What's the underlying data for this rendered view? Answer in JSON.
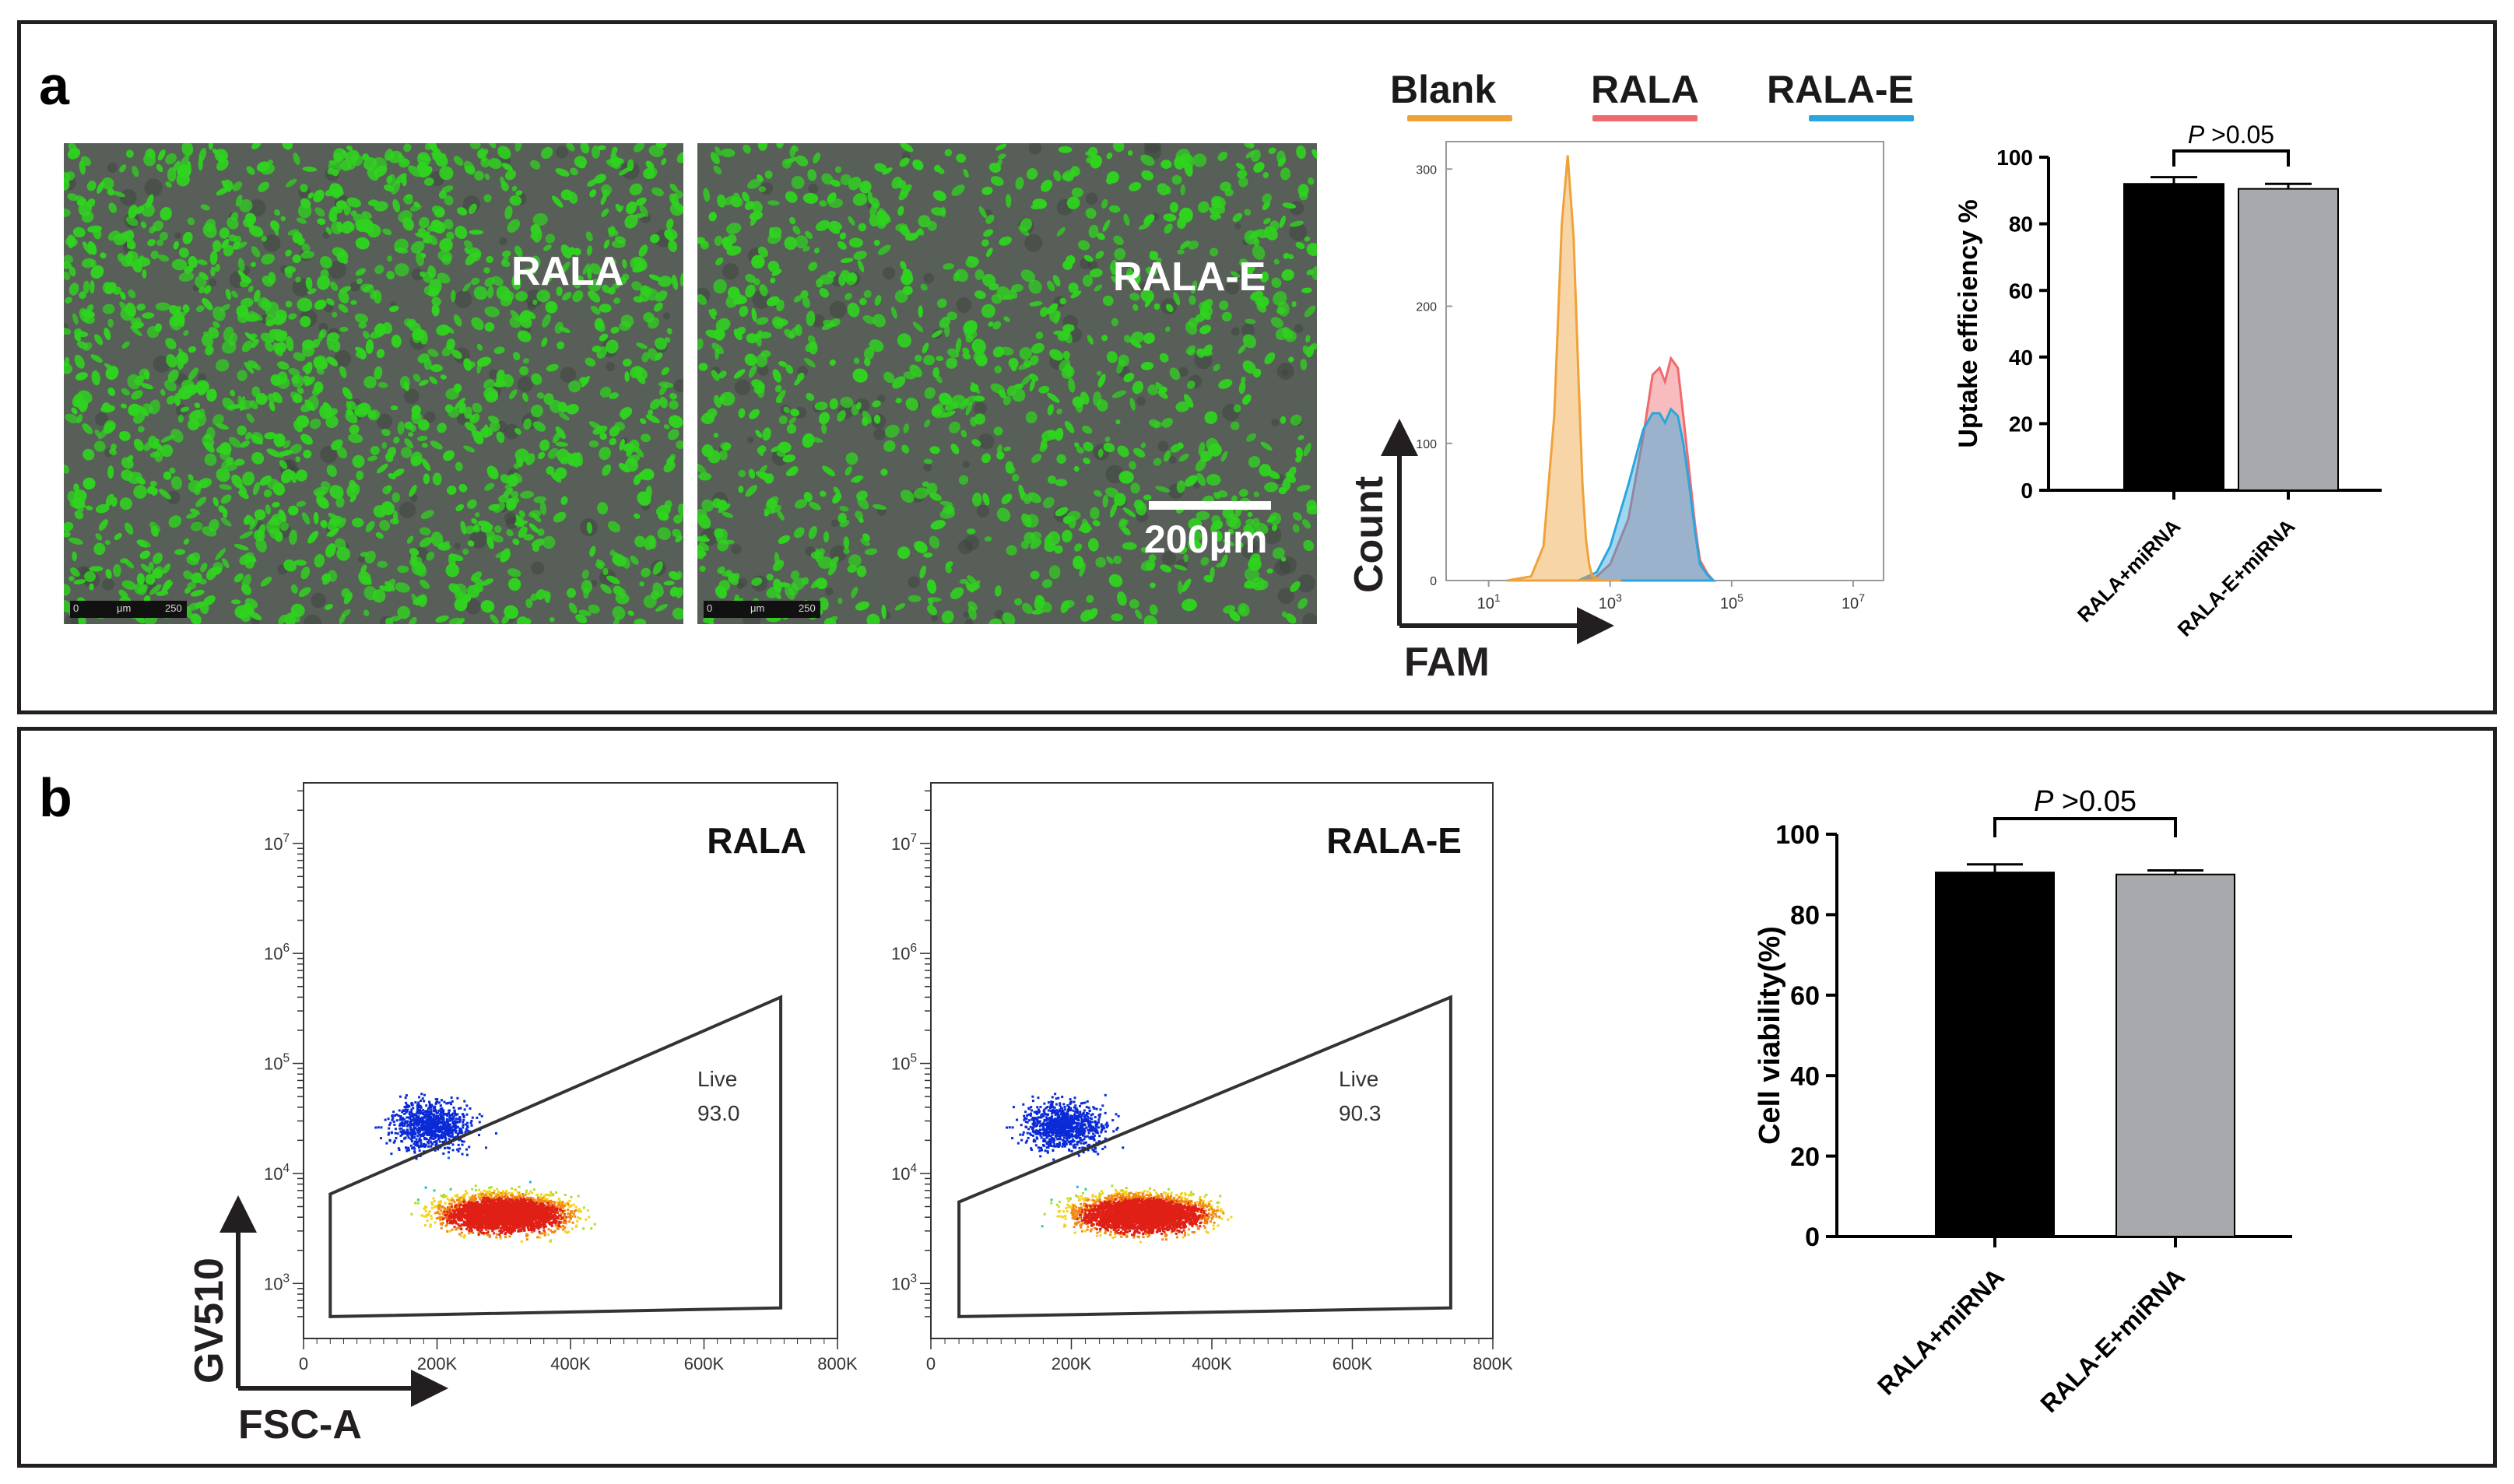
{
  "panel_a": {
    "label": "a",
    "microscopy": [
      {
        "label": "RALA",
        "strip_left": "0",
        "strip_mid": "μm",
        "strip_right": "250"
      },
      {
        "label": "RALA-E",
        "strip_left": "0",
        "strip_mid": "μm",
        "strip_right": "250",
        "scalebar_text": "200μm"
      }
    ],
    "legend": [
      {
        "name": "Blank",
        "color": "#f0a23a"
      },
      {
        "name": "RALA",
        "color": "#ef6a6e"
      },
      {
        "name": "RALA-E",
        "color": "#2aa6de"
      }
    ]
  },
  "panel_b": {
    "label": "b"
  },
  "colors": {
    "bar_black": "#000000",
    "bar_gray": "#a7a9ac",
    "micro_bg": "#585e58",
    "cell_green": "#2fd31f"
  },
  "chart_data": [
    {
      "type": "area",
      "id": "fam_histogram",
      "title": "",
      "xlabel": "FAM",
      "ylabel": "Count",
      "x_scale": "log",
      "x_tick_labels": [
        "10^1",
        "10^3",
        "10^5",
        "10^7"
      ],
      "y_tick_labels": [
        "0",
        "100",
        "200",
        "300"
      ],
      "ylim": [
        0,
        320
      ],
      "series": [
        {
          "name": "Blank",
          "color": "#f0a23a",
          "x": [
            20,
            50,
            80,
            120,
            160,
            200,
            250,
            300,
            350,
            400,
            450,
            500,
            600,
            800,
            1000,
            1500
          ],
          "y": [
            0,
            3,
            25,
            120,
            260,
            310,
            250,
            150,
            70,
            30,
            12,
            4,
            1,
            0,
            0,
            0
          ]
        },
        {
          "name": "RALA",
          "color": "#ef6a6e",
          "x": [
            300,
            600,
            1000,
            2000,
            3500,
            5000,
            6500,
            8000,
            10000,
            13000,
            16000,
            20000,
            25000,
            30000,
            40000,
            50000
          ],
          "y": [
            0,
            3,
            12,
            45,
            105,
            150,
            155,
            145,
            162,
            155,
            120,
            80,
            40,
            15,
            5,
            0
          ]
        },
        {
          "name": "RALA-E",
          "color": "#2aa6de",
          "x": [
            300,
            600,
            1000,
            2000,
            3500,
            5000,
            6500,
            8000,
            10000,
            13000,
            16000,
            20000,
            25000,
            30000,
            40000,
            50000
          ],
          "y": [
            0,
            6,
            25,
            70,
            110,
            122,
            122,
            115,
            125,
            120,
            100,
            70,
            35,
            12,
            4,
            0
          ]
        }
      ]
    },
    {
      "type": "bar",
      "id": "uptake_efficiency",
      "title": "",
      "xlabel": "",
      "ylabel": "Uptake efficiency %",
      "categories": [
        "RALA+miRNA",
        "RALA-E+miRNA"
      ],
      "values": [
        92,
        90.5
      ],
      "errors": [
        2,
        1.5
      ],
      "colors": [
        "#000000",
        "#a7a9ac"
      ],
      "ylim": [
        0,
        100
      ],
      "y_ticks": [
        0,
        20,
        40,
        60,
        80,
        100
      ],
      "annotation": {
        "p_symbol": "P",
        "p_text": " >0.05"
      }
    },
    {
      "type": "scatter",
      "id": "flow_rala",
      "title": "RALA",
      "xlabel": "FSC-A",
      "ylabel": "GV510",
      "x_tick_labels": [
        "0",
        "200K",
        "400K",
        "600K",
        "800K"
      ],
      "y_tick_labels": [
        "10^3",
        "10^4",
        "10^5",
        "10^6",
        "10^7"
      ],
      "xlim": [
        0,
        800000
      ],
      "y_scale": "log",
      "gate": {
        "name": "Live",
        "value": "93.0",
        "vertices": [
          [
            40000,
            500
          ],
          [
            715000,
            600
          ],
          [
            715000,
            400000
          ],
          [
            40000,
            6500
          ]
        ]
      }
    },
    {
      "type": "scatter",
      "id": "flow_rala_e",
      "title": "RALA-E",
      "xlabel": "",
      "ylabel": "",
      "x_tick_labels": [
        "0",
        "200K",
        "400K",
        "600K",
        "800K"
      ],
      "y_tick_labels": [
        "10^3",
        "10^4",
        "10^5",
        "10^6",
        "10^7"
      ],
      "xlim": [
        0,
        800000
      ],
      "y_scale": "log",
      "gate": {
        "name": "Live",
        "value": "90.3",
        "vertices": [
          [
            40000,
            500
          ],
          [
            740000,
            600
          ],
          [
            740000,
            400000
          ],
          [
            40000,
            5500
          ]
        ]
      }
    },
    {
      "type": "bar",
      "id": "cell_viability",
      "title": "",
      "xlabel": "",
      "ylabel": "Cell viability(%)",
      "categories": [
        "RALA+miRNA",
        "RALA-E+miRNA"
      ],
      "values": [
        90.5,
        90
      ],
      "errors": [
        2,
        1
      ],
      "colors": [
        "#000000",
        "#a7a9ac"
      ],
      "ylim": [
        0,
        100
      ],
      "y_ticks": [
        0,
        20,
        40,
        60,
        80,
        100
      ],
      "annotation": {
        "p_symbol": "P",
        "p_text": " >0.05"
      }
    }
  ]
}
